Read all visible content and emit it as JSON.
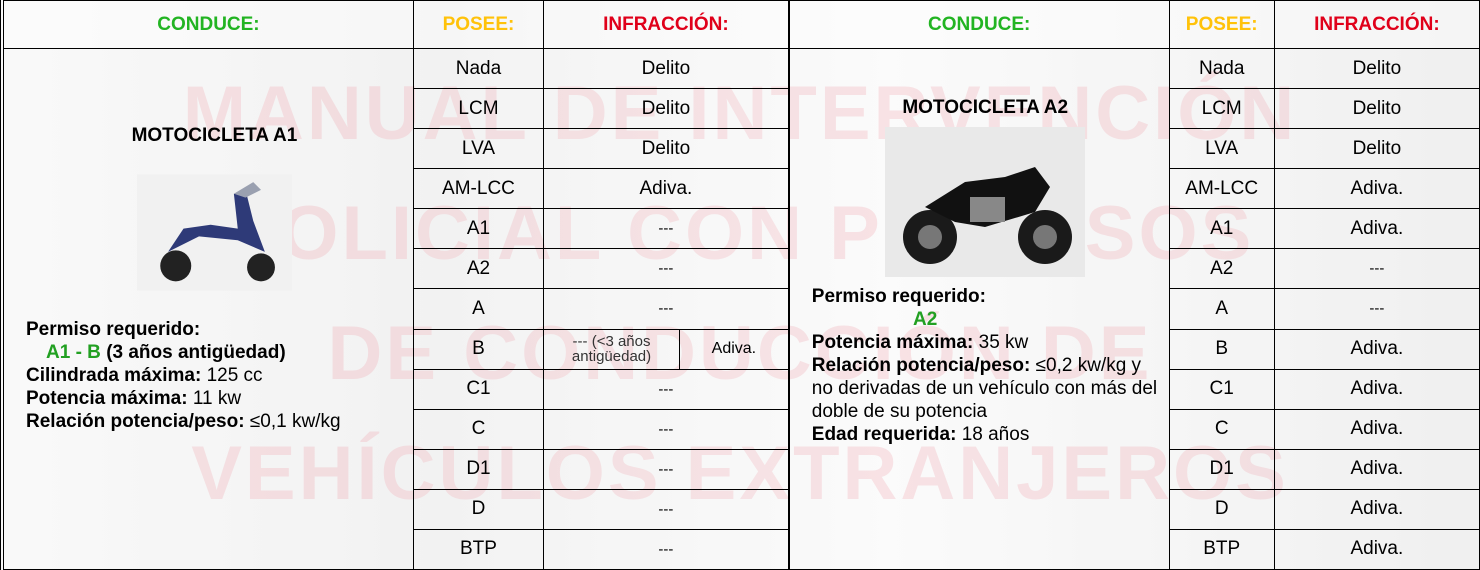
{
  "watermark": [
    "MANUAL DE INTERVENCIÓN",
    "POLICIAL CON PERMISOS",
    "DE CONDUCCIÓN DE",
    "VEHÍCULOS EXTRANJEROS"
  ],
  "panels": [
    {
      "header": {
        "conduce": "CONDUCE:",
        "posee": "POSEE:",
        "infraccion": "INFRACCIÓN:"
      },
      "vehicle": {
        "title": "MOTOCICLETA A1",
        "permiso_label": "Permiso requerido:",
        "permiso_value": "A1 - B",
        "permiso_note": "(3 años antigüedad)",
        "specs": [
          {
            "label": "Cilindrada máxima:",
            "value": "125 cc"
          },
          {
            "label": "Potencia máxima:",
            "value": "11 kw"
          },
          {
            "label": "Relación potencia/peso:",
            "value": "≤0,1 kw/kg"
          }
        ]
      },
      "rows": [
        {
          "posee": "Nada",
          "infraccion": "Delito"
        },
        {
          "posee": "LCM",
          "infraccion": "Delito"
        },
        {
          "posee": "LVA",
          "infraccion": "Delito"
        },
        {
          "posee": "AM-LCC",
          "infraccion": "Adiva."
        },
        {
          "posee": "A1",
          "infraccion": "---"
        },
        {
          "posee": "A2",
          "infraccion": "---"
        },
        {
          "posee": "A",
          "infraccion": "---"
        },
        {
          "posee": "B",
          "infraccion": "--- (<3 años antigüedad)",
          "infraccion_2": "Adiva."
        },
        {
          "posee": "C1",
          "infraccion": "---"
        },
        {
          "posee": "C",
          "infraccion": "---"
        },
        {
          "posee": "D1",
          "infraccion": "---"
        },
        {
          "posee": "D",
          "infraccion": "---"
        },
        {
          "posee": "BTP",
          "infraccion": "---"
        }
      ]
    },
    {
      "header": {
        "conduce": "CONDUCE:",
        "posee": "POSEE:",
        "infraccion": "INFRACCIÓN:"
      },
      "vehicle": {
        "title": "MOTOCICLETA A2",
        "permiso_label": "Permiso requerido:",
        "permiso_value": "A2",
        "specs": [
          {
            "label": "Potencia máxima:",
            "value": "35 kw"
          },
          {
            "label": "Relación potencia/peso:",
            "value": "≤0,2 kw/kg y no derivadas de un vehículo con más del doble de su potencia"
          },
          {
            "label": "Edad requerida:",
            "value": "18 años"
          }
        ]
      },
      "rows": [
        {
          "posee": "Nada",
          "infraccion": "Delito"
        },
        {
          "posee": "LCM",
          "infraccion": "Delito"
        },
        {
          "posee": "LVA",
          "infraccion": "Delito"
        },
        {
          "posee": "AM-LCC",
          "infraccion": "Adiva."
        },
        {
          "posee": "A1",
          "infraccion": "Adiva."
        },
        {
          "posee": "A2",
          "infraccion": "---"
        },
        {
          "posee": "A",
          "infraccion": "---"
        },
        {
          "posee": "B",
          "infraccion": "Adiva."
        },
        {
          "posee": "C1",
          "infraccion": "Adiva."
        },
        {
          "posee": "C",
          "infraccion": "Adiva."
        },
        {
          "posee": "D1",
          "infraccion": "Adiva."
        },
        {
          "posee": "D",
          "infraccion": "Adiva."
        },
        {
          "posee": "BTP",
          "infraccion": "Adiva."
        }
      ]
    }
  ]
}
